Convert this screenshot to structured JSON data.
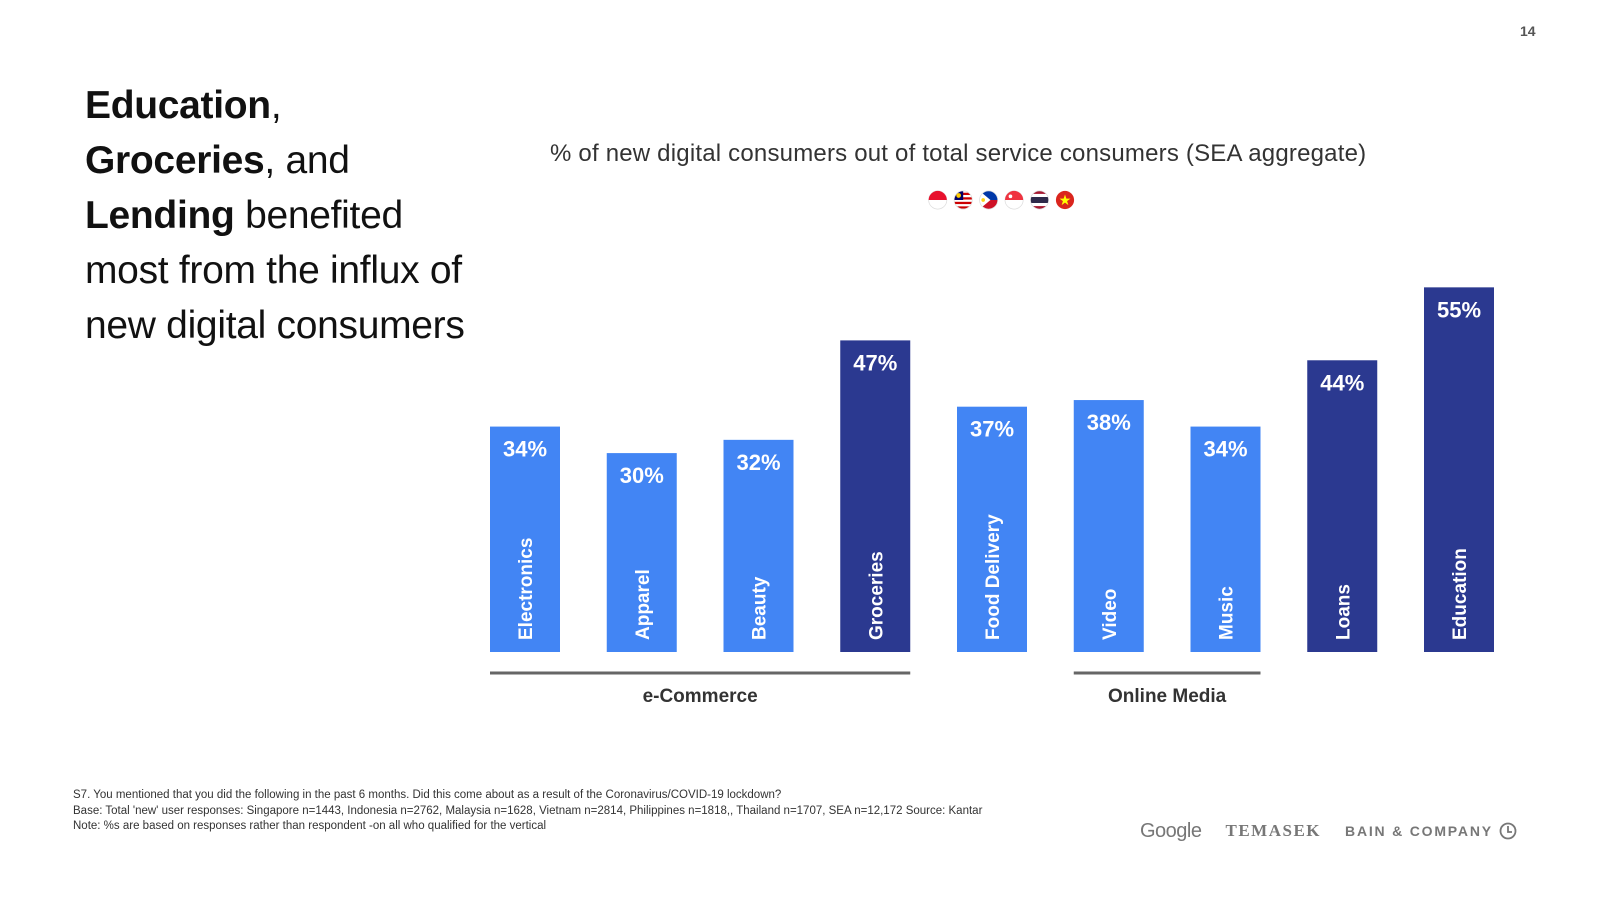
{
  "page_number": "14",
  "headline": {
    "segments": [
      {
        "text": "Education",
        "bold": true
      },
      {
        "text": ",",
        "bold": false
      },
      {
        "text": "Groceries",
        "bold": true
      },
      {
        "text": ", and",
        "bold": false
      },
      {
        "text": "Lending",
        "bold": true
      },
      {
        "text": " benefited most from the influx of new digital consumers",
        "bold": false
      }
    ]
  },
  "flags": [
    "indonesia-flag",
    "malaysia-flag",
    "philippines-flag",
    "singapore-flag",
    "thailand-flag",
    "vietnam-flag"
  ],
  "colors": {
    "light_bar": "#4285f4",
    "dark_bar": "#2b3990",
    "bracket": "#666666",
    "label": "#ffffff"
  },
  "chart_data": {
    "type": "bar",
    "title": "% of new digital consumers out of total service consumers (SEA aggregate)",
    "categories": [
      "Electronics",
      "Apparel",
      "Beauty",
      "Groceries",
      "Food Delivery",
      "Video",
      "Music",
      "Loans",
      "Education"
    ],
    "values": [
      34,
      30,
      32,
      47,
      37,
      38,
      34,
      44,
      55
    ],
    "value_labels": [
      "34%",
      "30%",
      "32%",
      "47%",
      "37%",
      "38%",
      "34%",
      "44%",
      "55%"
    ],
    "highlight": [
      false,
      false,
      false,
      true,
      false,
      false,
      false,
      true,
      true
    ],
    "groups": [
      {
        "label": "e-Commerce",
        "from": "Electronics",
        "to": "Groceries"
      },
      {
        "label": "Online Media",
        "from": "Video",
        "to": "Music"
      }
    ],
    "ylim": [
      0,
      60
    ],
    "xlabel": "",
    "ylabel": ""
  },
  "footnote": {
    "lines": [
      "S7. You mentioned that you did the following in the past 6 months. Did this come about as a result of the Coronavirus/COVID-19 lockdown?",
      "Base: Total 'new' user responses: Singapore n=1443, Indonesia n=2762, Malaysia n=1628, Vietnam n=2814, Philippines n=1818,, Thailand n=1707, SEA n=12,172 Source: Kantar",
      "Note: %s are based on responses rather than respondent -on all who qualified for the vertical"
    ]
  },
  "logos": {
    "google": "Google",
    "temasek": "TEMASEK",
    "bain": "BAIN & COMPANY"
  }
}
